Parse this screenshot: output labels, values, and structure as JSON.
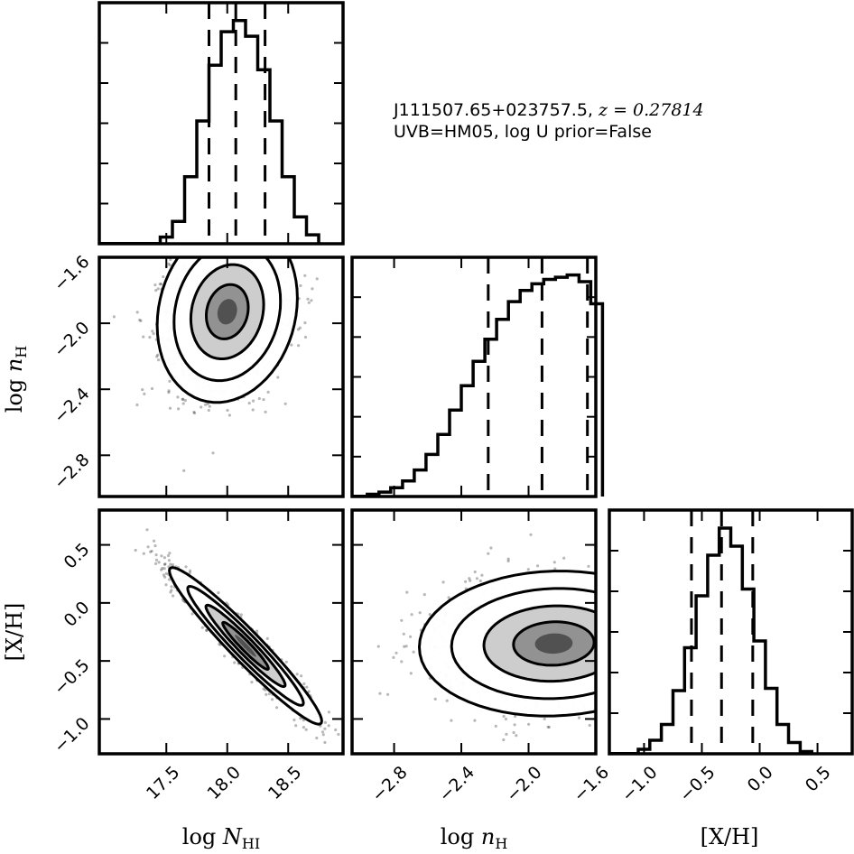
{
  "annotation": {
    "line1_prefix": "J111507.65+023757.5, ",
    "line1_math": "z = 0.27814",
    "line2": "UVB=HM05, log U prior=False"
  },
  "axes_labels": {
    "x": [
      "log N_HI",
      "log n_H",
      "[X/H]"
    ],
    "y": [
      "log n_H",
      "[X/H]"
    ]
  },
  "chart_data": {
    "type": "corner",
    "parameters": [
      {
        "name": "log N_HI",
        "label": "log N_HI",
        "range": [
          16.95,
          18.95
        ],
        "ticks": [
          17.5,
          18.0,
          18.5
        ],
        "quantiles": [
          17.85,
          18.07,
          18.31
        ]
      },
      {
        "name": "log n_H",
        "label": "log n_H",
        "range": [
          -3.05,
          -1.6
        ],
        "ticks": [
          -2.8,
          -2.4,
          -2.0,
          -1.6
        ],
        "quantiles": [
          -2.24,
          -1.92,
          -1.65
        ]
      },
      {
        "name": "[X/H]",
        "label": "[X/H]",
        "range": [
          -1.3,
          0.8
        ],
        "ticks": [
          -1.0,
          -0.5,
          0.0,
          0.5
        ],
        "quantiles": [
          -0.59,
          -0.33,
          -0.06
        ]
      }
    ],
    "left_y_ticks": {
      "row1": [
        -2.8,
        -2.4,
        -2.0,
        -1.6
      ],
      "row2": [
        -1.0,
        -0.5,
        0.0,
        0.5
      ]
    },
    "histograms": [
      {
        "param": "log N_HI",
        "bin_edges": [
          17.45,
          17.55,
          17.65,
          17.75,
          17.85,
          17.95,
          18.05,
          18.15,
          18.25,
          18.35,
          18.45,
          18.55,
          18.65,
          18.75
        ],
        "counts": [
          0.03,
          0.1,
          0.3,
          0.55,
          0.8,
          0.95,
          1.0,
          0.93,
          0.78,
          0.55,
          0.3,
          0.12,
          0.04
        ]
      },
      {
        "param": "log n_H",
        "bin_edges": [
          -2.96,
          -2.89,
          -2.82,
          -2.75,
          -2.68,
          -2.61,
          -2.54,
          -2.47,
          -2.4,
          -2.33,
          -2.26,
          -2.19,
          -2.12,
          -2.05,
          -1.98,
          -1.91,
          -1.84,
          -1.77,
          -1.7,
          -1.63,
          -1.56
        ],
        "counts": [
          0.01,
          0.02,
          0.04,
          0.07,
          0.12,
          0.19,
          0.28,
          0.39,
          0.5,
          0.61,
          0.71,
          0.8,
          0.88,
          0.93,
          0.96,
          0.98,
          0.99,
          1.0,
          0.97,
          0.87
        ]
      },
      {
        "param": "[X/H]",
        "bin_edges": [
          -1.05,
          -0.95,
          -0.85,
          -0.75,
          -0.65,
          -0.55,
          -0.45,
          -0.35,
          -0.25,
          -0.15,
          -0.05,
          0.05,
          0.15,
          0.25,
          0.35,
          0.45
        ],
        "counts": [
          0.02,
          0.06,
          0.13,
          0.28,
          0.47,
          0.7,
          0.88,
          1.0,
          0.92,
          0.73,
          0.5,
          0.29,
          0.13,
          0.05,
          0.01
        ]
      }
    ],
    "joint_2d": [
      {
        "x": "log N_HI",
        "y": "log n_H",
        "center": [
          18.0,
          -1.93
        ],
        "sigma": [
          0.23,
          0.22
        ],
        "correlation": 0.15
      },
      {
        "x": "log N_HI",
        "y": "[X/H]",
        "center": [
          18.15,
          -0.37
        ],
        "sigma": [
          0.25,
          0.27
        ],
        "correlation": -0.96
      },
      {
        "x": "log n_H",
        "y": "[X/H]",
        "center": [
          -1.85,
          -0.35
        ],
        "sigma": [
          0.32,
          0.25
        ],
        "correlation": 0.05
      }
    ]
  }
}
